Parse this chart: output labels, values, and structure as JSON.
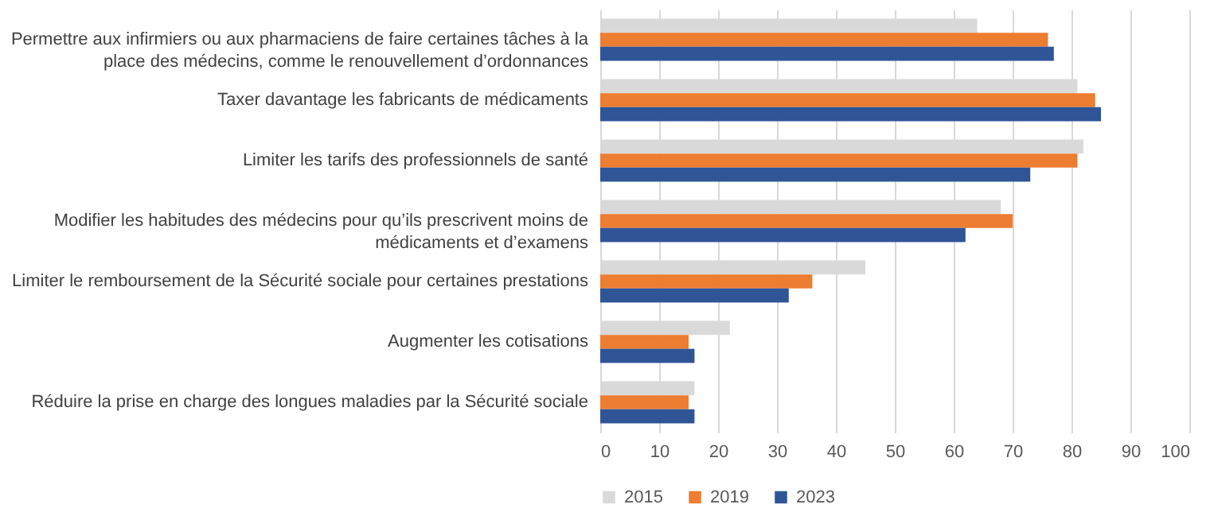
{
  "chart_data": {
    "type": "bar",
    "orientation": "horizontal",
    "categories": [
      "Permettre aux infirmiers ou aux pharmaciens de faire certaines tâches à la place des médecins, comme le renouvellement d’ordonnances",
      "Taxer davantage les fabricants de médicaments",
      "Limiter les tarifs des professionnels de santé",
      "Modifier les habitudes des médecins pour qu’ils prescrivent moins de médicaments et d’examens",
      "Limiter le remboursement de la Sécurité sociale pour certaines prestations",
      "Augmenter les cotisations",
      "Réduire la prise en charge des longues maladies par la Sécurité sociale"
    ],
    "series": [
      {
        "name": "2015",
        "color": "#d9d9d9",
        "values": [
          64,
          81,
          82,
          68,
          45,
          22,
          16
        ]
      },
      {
        "name": "2019",
        "color": "#ed7d31",
        "values": [
          76,
          84,
          81,
          70,
          36,
          15,
          15
        ]
      },
      {
        "name": "2023",
        "color": "#2f5597",
        "values": [
          77,
          85,
          73,
          62,
          32,
          16,
          16
        ]
      }
    ],
    "xlim": [
      0,
      100
    ],
    "xticks": [
      0,
      10,
      20,
      30,
      40,
      50,
      60,
      70,
      80,
      90,
      100
    ],
    "grid": "x",
    "legend": "bottom"
  }
}
